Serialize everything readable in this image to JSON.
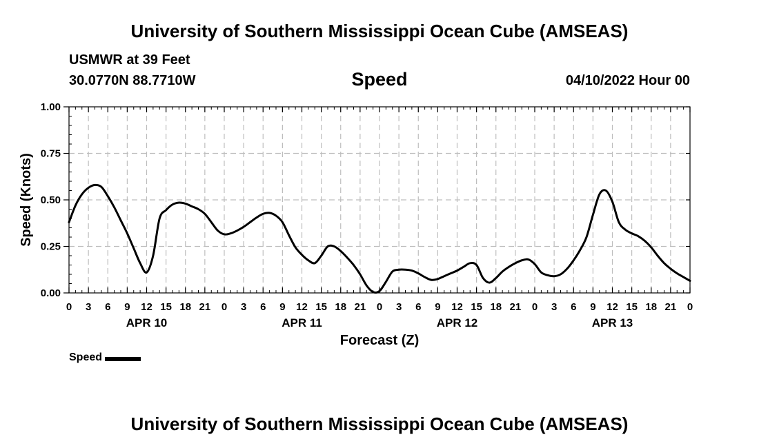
{
  "header": {
    "title": "University of Southern Mississippi Ocean Cube (AMSEAS)",
    "station": "USMWR at 39 Feet",
    "coordinates": "30.0770N  88.7710W",
    "date": "04/10/2022 Hour 00"
  },
  "footer": {
    "title": "University of Southern Mississippi Ocean Cube (AMSEAS)"
  },
  "legend": {
    "label": "Speed",
    "color": "#000000"
  },
  "chart_data": {
    "type": "line",
    "title": "Speed",
    "xlabel": "Forecast (Z)",
    "ylabel": "Speed (Knots)",
    "ylim": [
      0,
      1
    ],
    "xlim": [
      0,
      96
    ],
    "grid": true,
    "yticks": [
      0,
      0.25,
      0.5,
      0.75,
      1
    ],
    "ytick_labels": [
      "0.00",
      "0.25",
      "0.50",
      "0.75",
      "1.00"
    ],
    "xticks": [
      0,
      3,
      6,
      9,
      12,
      15,
      18,
      21,
      24,
      27,
      30,
      33,
      36,
      39,
      42,
      45,
      48,
      51,
      54,
      57,
      60,
      63,
      66,
      69,
      72,
      75,
      78,
      81,
      84,
      87,
      90,
      93,
      96
    ],
    "xtick_labels": [
      "0",
      "3",
      "6",
      "9",
      "12",
      "15",
      "18",
      "21",
      "0",
      "3",
      "6",
      "9",
      "12",
      "15",
      "18",
      "21",
      "0",
      "3",
      "6",
      "9",
      "12",
      "15",
      "18",
      "21",
      "0",
      "3",
      "6",
      "9",
      "12",
      "15",
      "18",
      "21",
      "0"
    ],
    "day_labels": [
      {
        "label": "APR 10",
        "x": 12
      },
      {
        "label": "APR 11",
        "x": 36
      },
      {
        "label": "APR 12",
        "x": 60
      },
      {
        "label": "APR 13",
        "x": 84
      }
    ],
    "series": [
      {
        "name": "Speed",
        "color": "#000000",
        "x": [
          0,
          1,
          2,
          3,
          4,
          5,
          6,
          7,
          8,
          9,
          10,
          11,
          12,
          13,
          14,
          15,
          16,
          17,
          18,
          19,
          20,
          21,
          22,
          23,
          24,
          25,
          26,
          27,
          28,
          29,
          30,
          31,
          32,
          33,
          34,
          35,
          36,
          37,
          38,
          39,
          40,
          41,
          42,
          43,
          44,
          45,
          46,
          47,
          48,
          49,
          50,
          51,
          52,
          53,
          54,
          55,
          56,
          57,
          58,
          59,
          60,
          61,
          62,
          63,
          64,
          65,
          66,
          67,
          68,
          69,
          70,
          71,
          72,
          73,
          74,
          75,
          76,
          77,
          78,
          79,
          80,
          81,
          82,
          83,
          84,
          85,
          86,
          87,
          88,
          89,
          90,
          91,
          92,
          93,
          94,
          95,
          96
        ],
        "values": [
          0.38,
          0.47,
          0.53,
          0.565,
          0.58,
          0.57,
          0.52,
          0.46,
          0.39,
          0.32,
          0.24,
          0.16,
          0.11,
          0.2,
          0.4,
          0.445,
          0.475,
          0.485,
          0.48,
          0.465,
          0.45,
          0.425,
          0.38,
          0.335,
          0.315,
          0.32,
          0.335,
          0.355,
          0.38,
          0.405,
          0.425,
          0.43,
          0.415,
          0.38,
          0.31,
          0.245,
          0.205,
          0.175,
          0.16,
          0.2,
          0.25,
          0.25,
          0.225,
          0.19,
          0.15,
          0.1,
          0.04,
          0.005,
          0.01,
          0.06,
          0.115,
          0.125,
          0.125,
          0.12,
          0.105,
          0.085,
          0.07,
          0.075,
          0.09,
          0.105,
          0.12,
          0.14,
          0.16,
          0.15,
          0.08,
          0.055,
          0.08,
          0.115,
          0.14,
          0.16,
          0.175,
          0.18,
          0.155,
          0.11,
          0.095,
          0.09,
          0.1,
          0.13,
          0.175,
          0.23,
          0.3,
          0.42,
          0.53,
          0.55,
          0.49,
          0.38,
          0.34,
          0.32,
          0.305,
          0.28,
          0.245,
          0.2,
          0.16,
          0.13,
          0.105,
          0.085,
          0.065
        ]
      }
    ]
  }
}
